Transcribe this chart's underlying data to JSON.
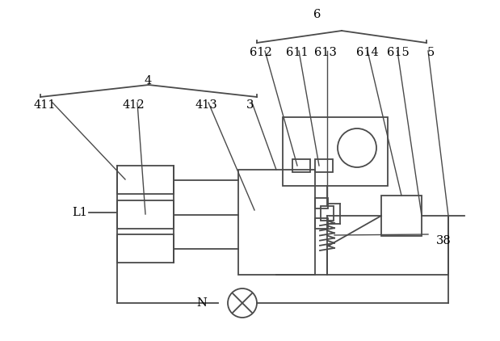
{
  "bg_color": "#ffffff",
  "line_color": "#4a4a4a",
  "text_color": "#000000",
  "fig_width": 6.19,
  "fig_height": 4.22,
  "dpi": 100
}
